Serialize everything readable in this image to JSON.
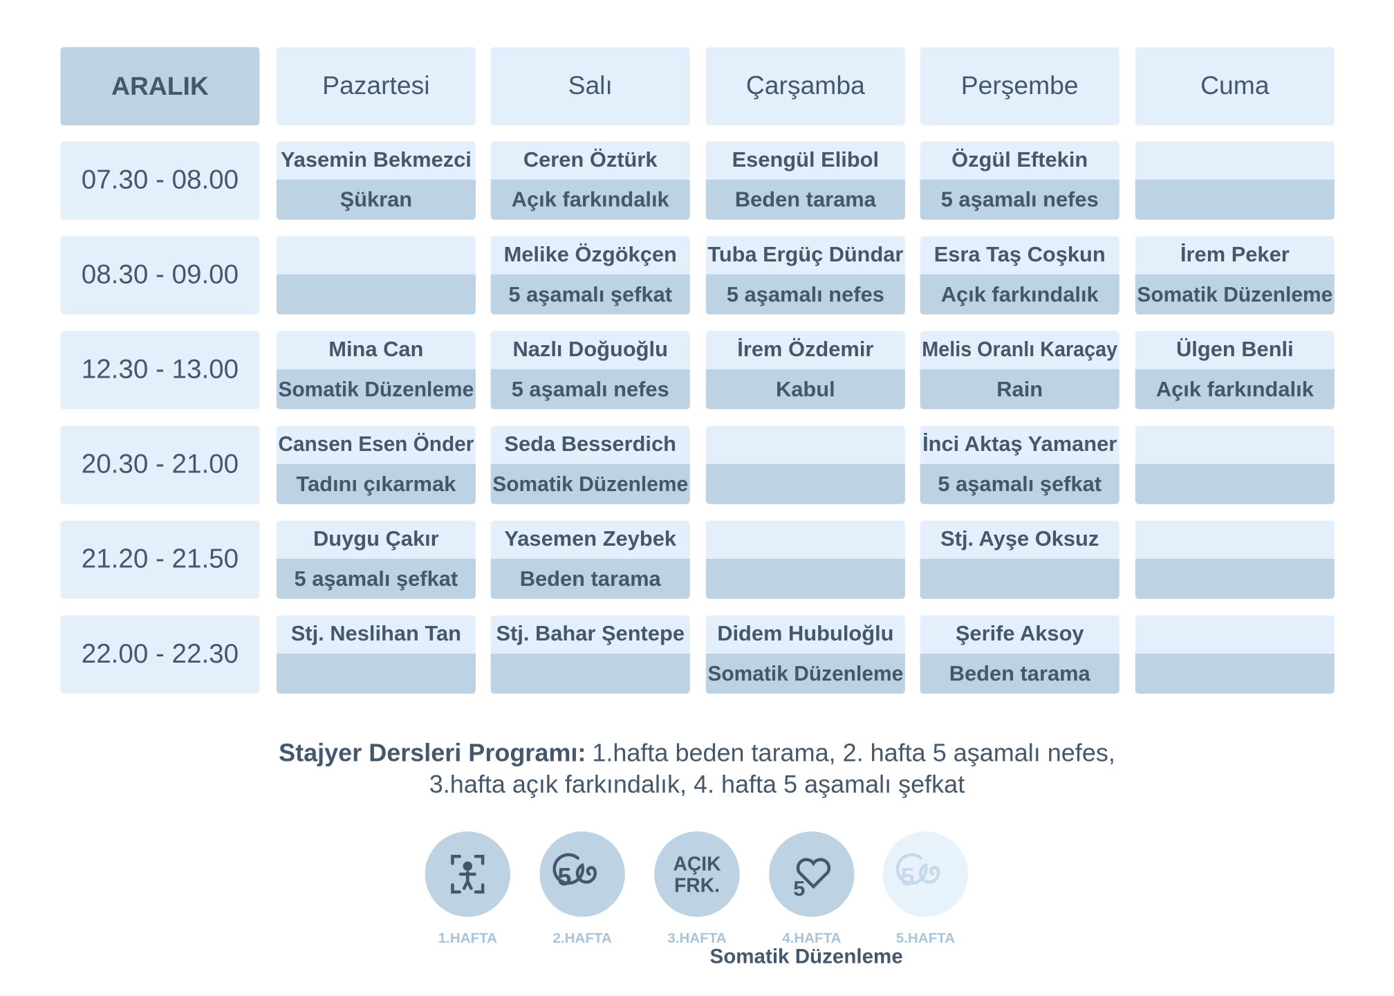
{
  "header": {
    "month": "ARALIK",
    "days": [
      "Pazartesi",
      "Salı",
      "Çarşamba",
      "Perşembe",
      "Cuma"
    ]
  },
  "rows": [
    {
      "time": "07.30 - 08.00",
      "cells": [
        {
          "teacher": "Yasemin Bekmezci",
          "practice": "Şükran"
        },
        {
          "teacher": "Ceren Öztürk",
          "practice": "Açık farkındalık"
        },
        {
          "teacher": "Esengül Elibol",
          "practice": "Beden tarama"
        },
        {
          "teacher": "Özgül Eftekin",
          "practice": "5 aşamalı nefes"
        },
        null
      ]
    },
    {
      "time": "08.30 - 09.00",
      "cells": [
        null,
        {
          "teacher": "Melike Özgökçen",
          "practice": "5 aşamalı şefkat"
        },
        {
          "teacher": "Tuba Ergüç Dündar",
          "practice": "5 aşamalı nefes"
        },
        {
          "teacher": "Esra Taş Coşkun",
          "practice": "Açık farkındalık"
        },
        {
          "teacher": "İrem Peker",
          "practice": "Somatik Düzenleme"
        }
      ]
    },
    {
      "time": "12.30 - 13.00",
      "cells": [
        {
          "teacher": "Mina Can",
          "practice": "Somatik Düzenleme"
        },
        {
          "teacher": "Nazlı Doğuoğlu",
          "practice": "5 aşamalı nefes"
        },
        {
          "teacher": "İrem Özdemir",
          "practice": "Kabul"
        },
        {
          "teacher": "Melis Oranlı Karaçay",
          "practice": "Rain"
        },
        {
          "teacher": "Ülgen Benli",
          "practice": "Açık farkındalık"
        }
      ]
    },
    {
      "time": "20.30 - 21.00",
      "cells": [
        {
          "teacher": "Cansen Esen Önder",
          "practice": "Tadını çıkarmak"
        },
        {
          "teacher": "Seda Besserdich",
          "practice": "Somatik Düzenleme"
        },
        null,
        {
          "teacher": "İnci Aktaş Yamaner",
          "practice": "5 aşamalı şefkat"
        },
        null
      ]
    },
    {
      "time": "21.20 - 21.50",
      "cells": [
        {
          "teacher": "Duygu Çakır",
          "practice": "5 aşamalı şefkat"
        },
        {
          "teacher": "Yasemen Zeybek",
          "practice": "Beden tarama"
        },
        null,
        {
          "teacher": "Stj. Ayşe Oksuz",
          "practice": null
        },
        null
      ]
    },
    {
      "time": "22.00 - 22.30",
      "cells": [
        {
          "teacher": "Stj. Neslihan Tan",
          "practice": null
        },
        {
          "teacher": "Stj. Bahar Şentepe",
          "practice": null
        },
        {
          "teacher": "Didem Hubuloğlu",
          "practice": "Somatik Düzenleme"
        },
        {
          "teacher": "Şerife Aksoy",
          "practice": "Beden tarama"
        },
        null
      ]
    }
  ],
  "footer": {
    "title": "Stajyer Dersleri Programı:",
    "line1": "1.hafta beden tarama, 2. hafta 5 aşamalı nefes,",
    "line2": "3.hafta açık farkındalık, 4. hafta 5 aşamalı şefkat"
  },
  "weeks": [
    {
      "icon_text": null,
      "label": "1.HAFTA"
    },
    {
      "icon_text": [
        "5"
      ],
      "label": "2.HAFTA"
    },
    {
      "icon_text": [
        "AÇIK",
        "FRK."
      ],
      "label": "3.HAFTA"
    },
    {
      "icon_text": [
        "5"
      ],
      "label": "4.HAFTA"
    },
    {
      "icon_text": [
        "5"
      ],
      "label": "5.HAFTA"
    }
  ],
  "note": "Somatik Düzenleme"
}
